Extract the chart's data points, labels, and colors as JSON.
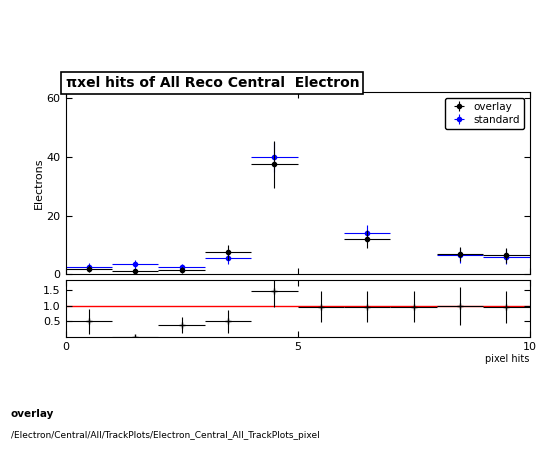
{
  "title": "πxel hits of All Reco Central  Electron",
  "ylabel_main": "Electrons",
  "xlabel": "pixel hits",
  "overlay_label": "overlay",
  "standard_label": "standard",
  "overlay_color": "black",
  "standard_color": "blue",
  "red_line_color": "red",
  "overlay_x": [
    0.5,
    1.5,
    2.5,
    3.5,
    4.5,
    6.5,
    8.5,
    9.5
  ],
  "overlay_y": [
    2.0,
    1.0,
    1.5,
    7.5,
    37.5,
    12.0,
    7.0,
    6.5
  ],
  "overlay_xerr": [
    0.5,
    0.5,
    0.5,
    0.5,
    0.5,
    0.5,
    0.5,
    0.5
  ],
  "overlay_yerr": [
    1.2,
    0.9,
    1.0,
    2.5,
    8.0,
    3.0,
    2.5,
    2.5
  ],
  "standard_x": [
    0.5,
    1.5,
    2.5,
    3.5,
    4.5,
    6.5,
    8.5,
    9.5
  ],
  "standard_y": [
    2.5,
    3.5,
    2.5,
    5.5,
    40.0,
    14.0,
    6.5,
    6.0
  ],
  "standard_xerr": [
    0.5,
    0.5,
    0.5,
    0.5,
    0.5,
    0.5,
    0.5,
    0.5
  ],
  "standard_yerr": [
    1.3,
    1.5,
    1.0,
    2.0,
    5.0,
    3.0,
    2.5,
    2.5
  ],
  "ratio_x": [
    0.5,
    1.5,
    2.5,
    3.5,
    4.5,
    5.5,
    6.5,
    7.5,
    8.5,
    9.5
  ],
  "ratio_y": [
    0.5,
    0.0,
    0.4,
    0.5,
    1.45,
    0.97,
    0.97,
    0.97,
    1.0,
    0.95
  ],
  "ratio_xerr": [
    0.5,
    0.5,
    0.5,
    0.5,
    0.5,
    0.5,
    0.5,
    0.5,
    0.5,
    0.5
  ],
  "ratio_yerr": [
    0.4,
    0.0,
    0.25,
    0.35,
    0.5,
    0.5,
    0.5,
    0.5,
    0.6,
    0.5
  ],
  "main_ylim": [
    0,
    62
  ],
  "main_yticks": [
    0,
    20,
    40,
    60
  ],
  "ratio_ylim": [
    0.0,
    1.8
  ],
  "ratio_yticks": [
    0.5,
    1.0,
    1.5
  ],
  "xlim": [
    0,
    10
  ],
  "xticks": [
    0,
    5,
    10
  ],
  "footer_line1": "overlay",
  "footer_line2": "/Electron/Central/All/TrackPlots/Electron_Central_All_TrackPlots_pixel"
}
